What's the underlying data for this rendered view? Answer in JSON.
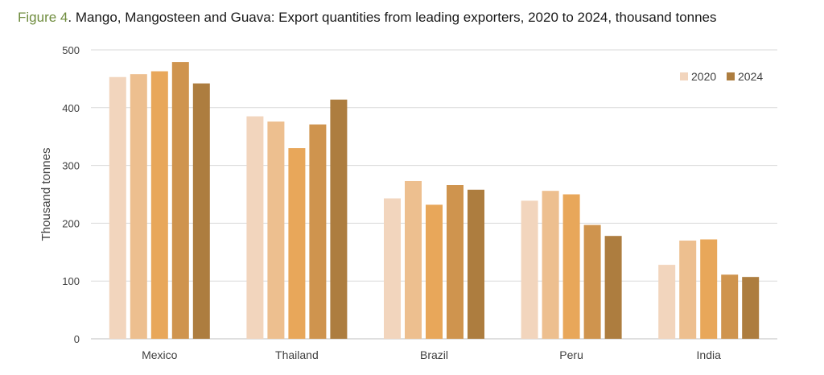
{
  "figure_label": "Figure 4",
  "title_text": ". Mango, Mangosteen and Guava: Export quantities from leading exporters, 2020 to 2024, thousand tonnes",
  "colors": {
    "label": "#6f8c3e",
    "series": [
      "#f2d5bd",
      "#edbf8f",
      "#e8a75a",
      "#cf944e",
      "#ad7d3f"
    ],
    "grid": "#d9d9d9"
  },
  "chart_data": {
    "type": "bar",
    "ylabel": "Thousand tonnes",
    "ylim": [
      0,
      500
    ],
    "yticks": [
      0,
      100,
      200,
      300,
      400,
      500
    ],
    "grid": true,
    "legend_position": "top-right",
    "categories": [
      "Mexico",
      "Thailand",
      "Brazil",
      "Peru",
      "India"
    ],
    "series": [
      {
        "values": [
          453,
          385,
          243,
          239,
          128
        ]
      },
      {
        "values": [
          458,
          376,
          273,
          256,
          170
        ]
      },
      {
        "values": [
          463,
          330,
          232,
          250,
          172
        ]
      },
      {
        "values": [
          479,
          371,
          266,
          197,
          111
        ]
      },
      {
        "values": [
          442,
          414,
          258,
          178,
          107
        ]
      }
    ],
    "legend": [
      {
        "label": "2020",
        "series_index": 0
      },
      {
        "label": "2024",
        "series_index": 4
      }
    ]
  }
}
